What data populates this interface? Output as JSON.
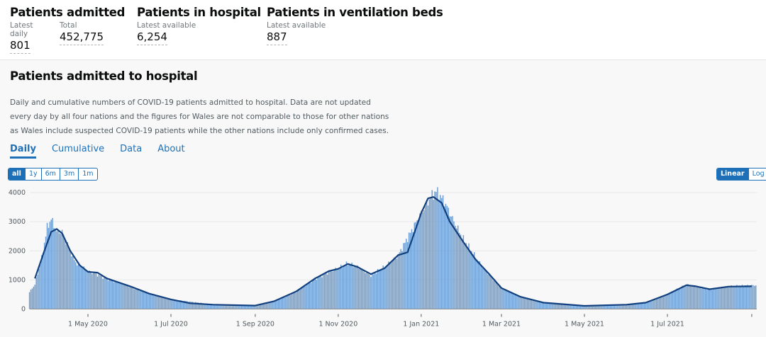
{
  "header": {
    "cards": [
      {
        "title": "Patients admitted",
        "metrics": [
          {
            "label": "Latest daily",
            "value": "801"
          },
          {
            "label": "Total",
            "value": "452,775"
          }
        ]
      },
      {
        "title": "Patients in hospital",
        "metrics": [
          {
            "label": "Latest available",
            "value": "6,254"
          }
        ]
      },
      {
        "title": "Patients in ventilation beds",
        "metrics": [
          {
            "label": "Latest available",
            "value": "887"
          }
        ]
      }
    ]
  },
  "section": {
    "title": "Patients admitted to hospital",
    "description": "Daily and cumulative numbers of COVID-19 patients admitted to hospital. Data are not updated every day by all four nations and the figures for Wales are not comparable to those for other nations as Wales include suspected COVID-19 patients while the other nations include only confirmed cases.",
    "tabs": [
      "Daily",
      "Cumulative",
      "Data",
      "About"
    ],
    "range_buttons": [
      "all",
      "1y",
      "6m",
      "3m",
      "1m"
    ],
    "scale_buttons": [
      "Linear",
      "Log"
    ]
  },
  "chart_data": {
    "type": "bar",
    "colors": {
      "bars": "#6f9fd1",
      "line": "#12407f"
    },
    "ylim": [
      0,
      4000
    ],
    "yticks": [
      "0",
      "1000",
      "2000",
      "3000",
      "4000"
    ],
    "xticks": [
      "1 May 2020",
      "1 Jul 2020",
      "1 Sep 2020",
      "1 Nov 2020",
      "1 Jan 2021",
      "1 Mar 2021",
      "1 May 2021",
      "1 Jul 2021",
      ""
    ],
    "xtick_dates": [
      "2020-05-01",
      "2020-07-01",
      "2020-09-01",
      "2020-11-01",
      "2021-01-01",
      "2021-03-01",
      "2021-05-01",
      "2021-07-01",
      "2021-09-01"
    ],
    "grid": true,
    "daily": [
      [
        "2020-03-19",
        580
      ],
      [
        "2020-03-23",
        850
      ],
      [
        "2020-03-28",
        1750
      ],
      [
        "2020-04-01",
        2800
      ],
      [
        "2020-04-04",
        3100
      ],
      [
        "2020-04-08",
        2650
      ],
      [
        "2020-04-12",
        2650
      ],
      [
        "2020-04-15",
        2300
      ],
      [
        "2020-04-22",
        1600
      ],
      [
        "2020-05-01",
        1300
      ],
      [
        "2020-05-15",
        1050
      ],
      [
        "2020-06-01",
        770
      ],
      [
        "2020-06-15",
        530
      ],
      [
        "2020-07-01",
        330
      ],
      [
        "2020-08-01",
        160
      ],
      [
        "2020-09-01",
        120
      ],
      [
        "2020-09-15",
        260
      ],
      [
        "2020-10-01",
        580
      ],
      [
        "2020-10-15",
        1050
      ],
      [
        "2020-11-01",
        1400
      ],
      [
        "2020-11-08",
        1570
      ],
      [
        "2020-11-15",
        1450
      ],
      [
        "2020-11-25",
        1150
      ],
      [
        "2020-12-05",
        1450
      ],
      [
        "2020-12-15",
        1850
      ],
      [
        "2020-12-25",
        2700
      ],
      [
        "2021-01-01",
        3300
      ],
      [
        "2021-01-08",
        3850
      ],
      [
        "2021-01-12",
        4050
      ],
      [
        "2021-01-18",
        3700
      ],
      [
        "2021-01-25",
        3000
      ],
      [
        "2021-02-01",
        2400
      ],
      [
        "2021-02-15",
        1450
      ],
      [
        "2021-03-01",
        720
      ],
      [
        "2021-03-15",
        420
      ],
      [
        "2021-04-01",
        220
      ],
      [
        "2021-05-01",
        110
      ],
      [
        "2021-06-01",
        150
      ],
      [
        "2021-06-15",
        220
      ],
      [
        "2021-07-01",
        500
      ],
      [
        "2021-07-15",
        830
      ],
      [
        "2021-07-22",
        780
      ],
      [
        "2021-08-01",
        680
      ],
      [
        "2021-08-15",
        780
      ],
      [
        "2021-09-04",
        820
      ]
    ],
    "average": [
      [
        "2020-03-23",
        1050
      ],
      [
        "2020-03-30",
        2000
      ],
      [
        "2020-04-04",
        2650
      ],
      [
        "2020-04-08",
        2750
      ],
      [
        "2020-04-12",
        2600
      ],
      [
        "2020-04-18",
        2000
      ],
      [
        "2020-04-25",
        1500
      ],
      [
        "2020-05-01",
        1280
      ],
      [
        "2020-05-08",
        1250
      ],
      [
        "2020-05-15",
        1050
      ],
      [
        "2020-06-01",
        780
      ],
      [
        "2020-06-15",
        530
      ],
      [
        "2020-07-01",
        330
      ],
      [
        "2020-07-15",
        200
      ],
      [
        "2020-08-01",
        150
      ],
      [
        "2020-09-01",
        120
      ],
      [
        "2020-09-15",
        270
      ],
      [
        "2020-10-01",
        600
      ],
      [
        "2020-10-15",
        1050
      ],
      [
        "2020-10-25",
        1300
      ],
      [
        "2020-11-01",
        1380
      ],
      [
        "2020-11-08",
        1550
      ],
      [
        "2020-11-15",
        1450
      ],
      [
        "2020-11-25",
        1200
      ],
      [
        "2020-12-05",
        1400
      ],
      [
        "2020-12-15",
        1850
      ],
      [
        "2020-12-22",
        1950
      ],
      [
        "2021-01-01",
        3300
      ],
      [
        "2021-01-06",
        3800
      ],
      [
        "2021-01-10",
        3850
      ],
      [
        "2021-01-16",
        3650
      ],
      [
        "2021-01-22",
        3000
      ],
      [
        "2021-02-01",
        2300
      ],
      [
        "2021-02-10",
        1700
      ],
      [
        "2021-02-20",
        1200
      ],
      [
        "2021-03-01",
        720
      ],
      [
        "2021-03-15",
        420
      ],
      [
        "2021-04-01",
        220
      ],
      [
        "2021-05-01",
        110
      ],
      [
        "2021-06-01",
        150
      ],
      [
        "2021-06-15",
        220
      ],
      [
        "2021-07-01",
        500
      ],
      [
        "2021-07-15",
        820
      ],
      [
        "2021-07-22",
        780
      ],
      [
        "2021-08-01",
        680
      ],
      [
        "2021-08-15",
        770
      ],
      [
        "2021-09-01",
        780
      ]
    ]
  }
}
